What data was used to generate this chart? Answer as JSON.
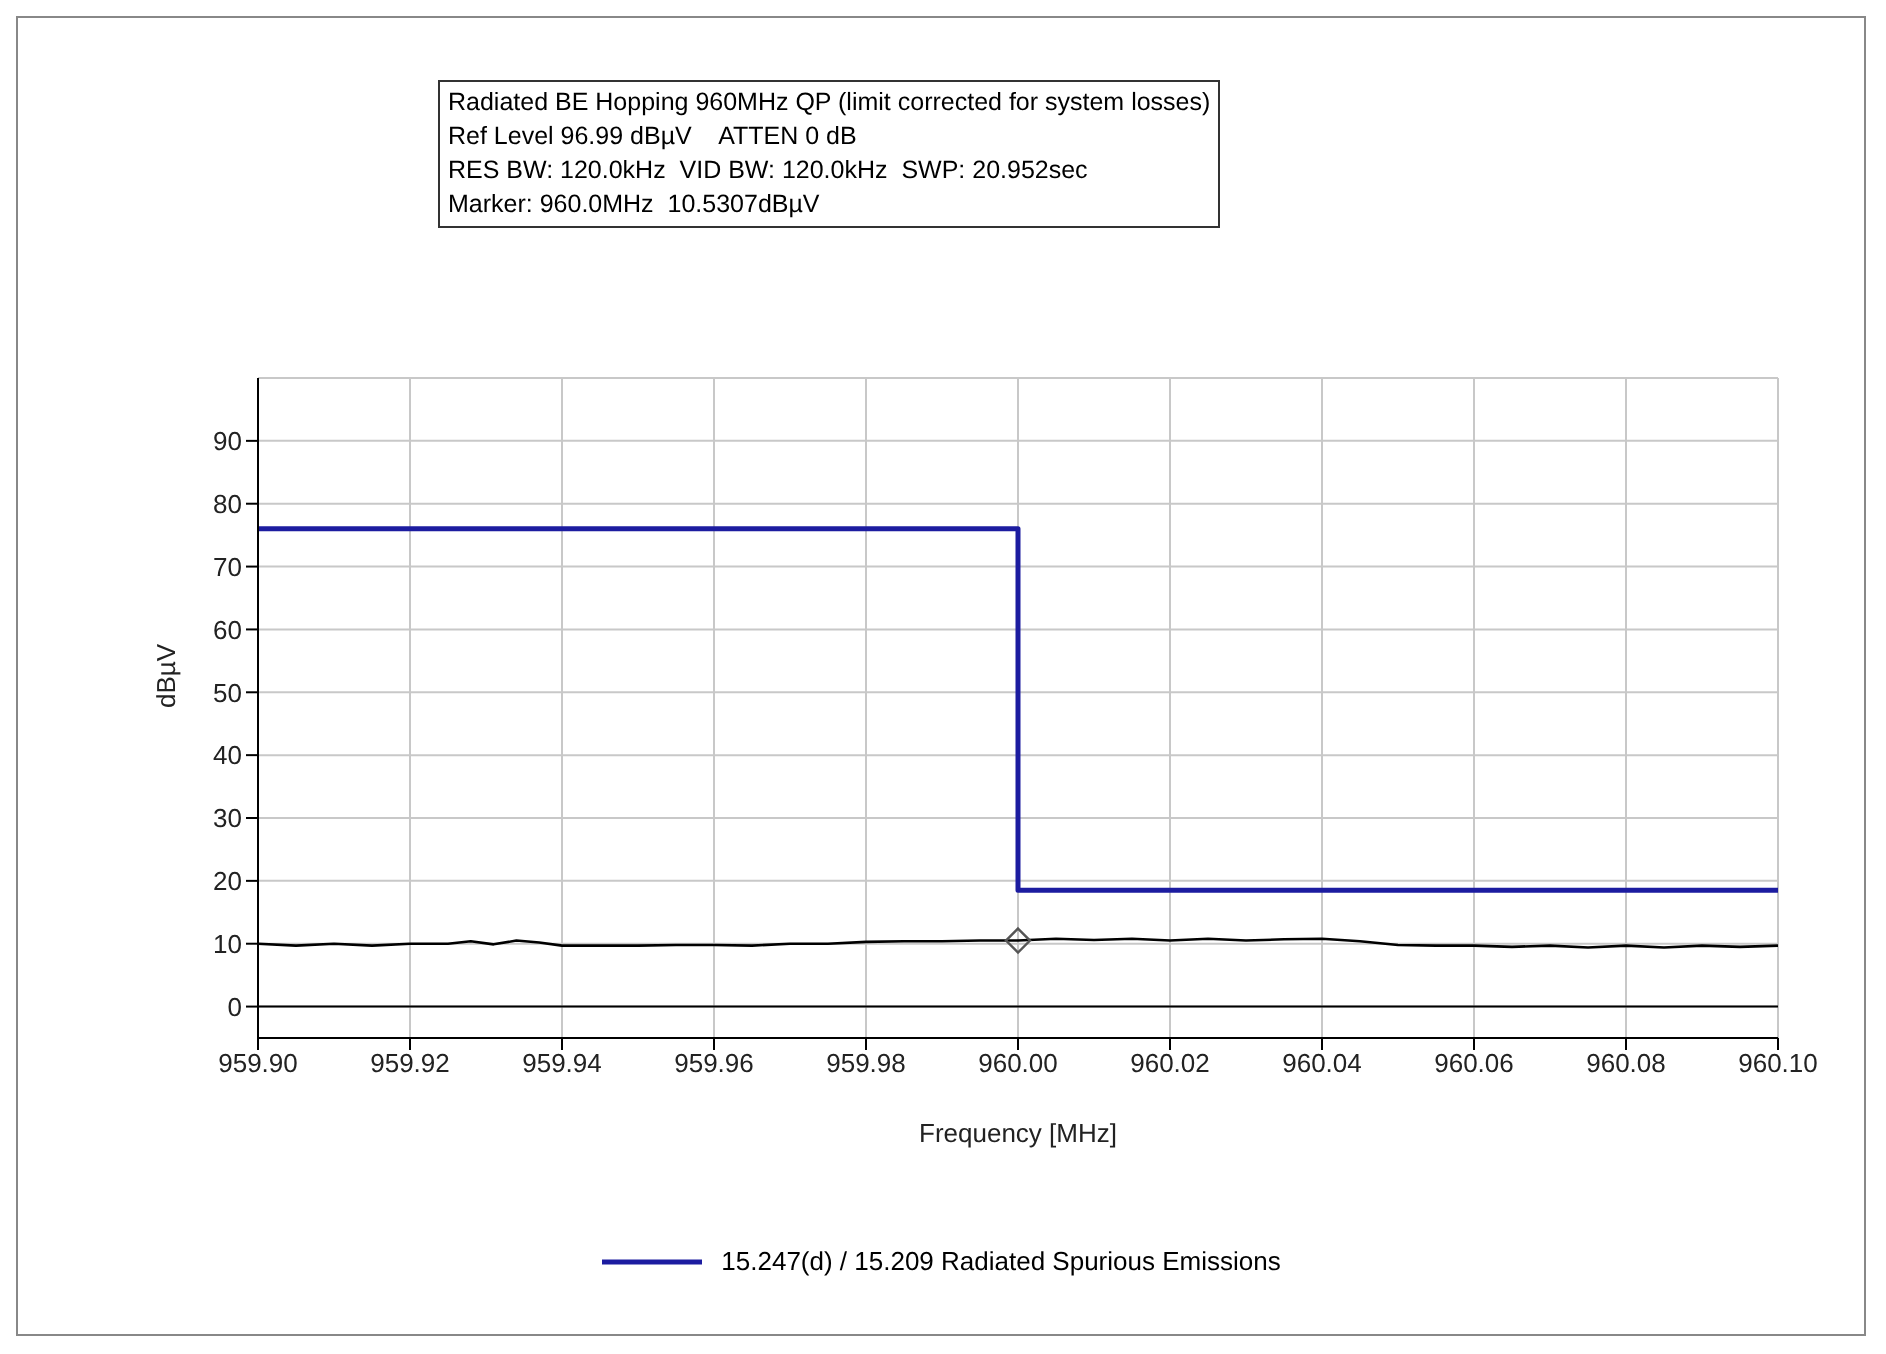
{
  "chart_data": {
    "type": "line",
    "title": "Radiated BE Hopping 960MHz QP (limit corrected for system losses)",
    "annotations": [
      "Ref Level 96.99 dBµV    ATTEN 0 dB",
      "RES BW: 120.0kHz  VID BW: 120.0kHz  SWP: 20.952sec",
      "Marker: 960.0MHz  10.5307dBµV"
    ],
    "xlabel": "Frequency [MHz]",
    "ylabel": "dBµV",
    "series": [
      {
        "name": "15.247(d) / 15.209 Radiated Spurious Emissions",
        "type": "step",
        "color": "#1c1ca0",
        "x": [
          959.9,
          960.0,
          960.1
        ],
        "values": [
          76,
          18.5,
          18.5
        ]
      },
      {
        "color": "#000000",
        "x": [
          959.9,
          959.905,
          959.91,
          959.915,
          959.92,
          959.925,
          959.928,
          959.931,
          959.934,
          959.937,
          959.94,
          959.945,
          959.95,
          959.955,
          959.96,
          959.965,
          959.97,
          959.975,
          959.98,
          959.985,
          959.99,
          959.995,
          960.0,
          960.005,
          960.01,
          960.015,
          960.02,
          960.025,
          960.03,
          960.035,
          960.04,
          960.045,
          960.05,
          960.055,
          960.06,
          960.065,
          960.07,
          960.075,
          960.08,
          960.085,
          960.09,
          960.095,
          960.1
        ],
        "values": [
          10.0,
          9.7,
          10.0,
          9.7,
          10.0,
          10.0,
          10.4,
          9.9,
          10.5,
          10.2,
          9.7,
          9.7,
          9.7,
          9.8,
          9.8,
          9.7,
          10.0,
          10.0,
          10.3,
          10.4,
          10.4,
          10.5,
          10.5,
          10.8,
          10.6,
          10.8,
          10.5,
          10.8,
          10.5,
          10.7,
          10.8,
          10.4,
          9.8,
          9.7,
          9.7,
          9.5,
          9.7,
          9.4,
          9.7,
          9.4,
          9.7,
          9.5,
          9.7
        ]
      },
      {
        "type": "scatter",
        "color": "#555555",
        "marker": "diamond",
        "x": [
          960.0
        ],
        "values": [
          10.5
        ]
      }
    ],
    "xlim": [
      959.9,
      960.1
    ],
    "ylim": [
      -5,
      100
    ],
    "xticks": [
      {
        "value": 959.9,
        "label": "959.90"
      },
      {
        "value": 959.92,
        "label": "959.92"
      },
      {
        "value": 959.94,
        "label": "959.94"
      },
      {
        "value": 959.96,
        "label": "959.96"
      },
      {
        "value": 959.98,
        "label": "959.98"
      },
      {
        "value": 960.0,
        "label": "960.00"
      },
      {
        "value": 960.02,
        "label": "960.02"
      },
      {
        "value": 960.04,
        "label": "960.04"
      },
      {
        "value": 960.06,
        "label": "960.06"
      },
      {
        "value": 960.08,
        "label": "960.08"
      },
      {
        "value": 960.1,
        "label": "960.10"
      }
    ],
    "yticks": [
      0,
      10,
      20,
      30,
      40,
      50,
      60,
      70,
      80,
      90
    ],
    "grid": true,
    "legend": "bottom"
  }
}
